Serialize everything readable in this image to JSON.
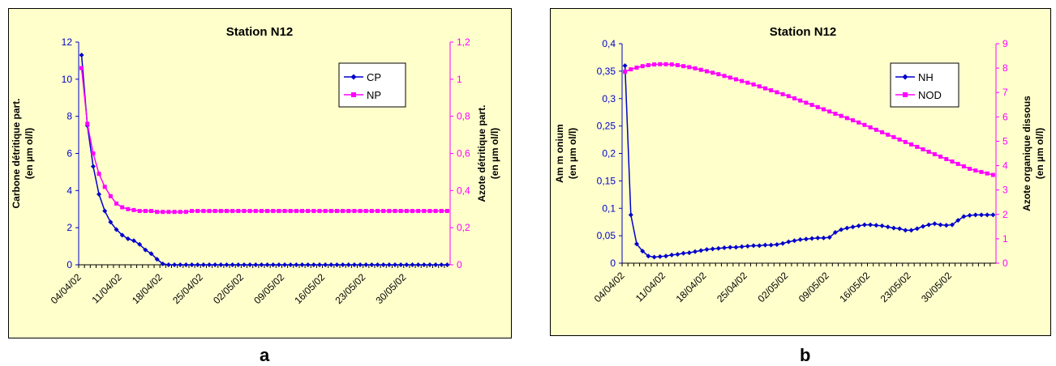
{
  "panel_labels": [
    "a",
    "b"
  ],
  "chart_data": [
    {
      "type": "line",
      "title": "Station N12",
      "ylabel": "Carbone détritique part. (en µm ol/l)",
      "ylabel_lines": [
        "Carbone détritique part.",
        "(en µm ol/l)"
      ],
      "y2label": "Azote détritique part. (en µm ol/l)",
      "y2label_lines": [
        "Azote détritique part.",
        "(en µm ol/l)"
      ],
      "xlabel": "",
      "ylim": [
        0,
        12
      ],
      "yticks": [
        0,
        2,
        4,
        6,
        8,
        10,
        12
      ],
      "ytick_labels": [
        "0",
        "2",
        "4",
        "6",
        "8",
        "10",
        "12"
      ],
      "y2lim": [
        0,
        1.2
      ],
      "y2ticks": [
        0,
        0.2,
        0.4,
        0.6,
        0.8,
        1,
        1.2
      ],
      "y2tick_labels": [
        "0",
        "0,2",
        "0,4",
        "0,6",
        "0,8",
        "1",
        "1,2"
      ],
      "x_tick_labels": [
        "04/04/02",
        "11/04/02",
        "18/04/02",
        "25/04/02",
        "02/05/02",
        "09/05/02",
        "16/05/02",
        "23/05/02",
        "30/05/02"
      ],
      "x_tick_days": [
        0,
        7,
        14,
        21,
        28,
        35,
        42,
        49,
        56
      ],
      "x_days": [
        0,
        1,
        2,
        3,
        4,
        5,
        6,
        7,
        8,
        9,
        10,
        11,
        12,
        13,
        14,
        15,
        16,
        17,
        18,
        19,
        20,
        21,
        22,
        23,
        24,
        25,
        26,
        27,
        28,
        29,
        30,
        31,
        32,
        33,
        34,
        35,
        36,
        37,
        38,
        39,
        40,
        41,
        42,
        43,
        44,
        45,
        46,
        47,
        48,
        49,
        50,
        51,
        52,
        53,
        54,
        55,
        56,
        57,
        58,
        59,
        60,
        61,
        62,
        63
      ],
      "grid": false,
      "legend_position": "top-right",
      "series": [
        {
          "name": "CP",
          "axis": "left",
          "color": "#0000cc",
          "marker": "diamond",
          "values": [
            11.3,
            7.5,
            5.3,
            3.8,
            2.9,
            2.3,
            1.9,
            1.6,
            1.4,
            1.3,
            1.1,
            0.8,
            0.6,
            0.3,
            0.05,
            0,
            0,
            0,
            0,
            0,
            0,
            0,
            0,
            0,
            0,
            0,
            0,
            0,
            0,
            0,
            0,
            0,
            0,
            0,
            0,
            0,
            0,
            0,
            0,
            0,
            0,
            0,
            0,
            0,
            0,
            0,
            0,
            0,
            0,
            0,
            0,
            0,
            0,
            0,
            0,
            0,
            0,
            0,
            0,
            0,
            0,
            0,
            0,
            0
          ]
        },
        {
          "name": "NP",
          "axis": "right",
          "color": "#ff00ff",
          "marker": "square",
          "values": [
            1.06,
            0.76,
            0.6,
            0.49,
            0.42,
            0.37,
            0.33,
            0.31,
            0.3,
            0.295,
            0.29,
            0.29,
            0.29,
            0.285,
            0.285,
            0.285,
            0.285,
            0.285,
            0.285,
            0.29,
            0.29,
            0.29,
            0.29,
            0.29,
            0.29,
            0.29,
            0.29,
            0.29,
            0.29,
            0.29,
            0.29,
            0.29,
            0.29,
            0.29,
            0.29,
            0.29,
            0.29,
            0.29,
            0.29,
            0.29,
            0.29,
            0.29,
            0.29,
            0.29,
            0.29,
            0.29,
            0.29,
            0.29,
            0.29,
            0.29,
            0.29,
            0.29,
            0.29,
            0.29,
            0.29,
            0.29,
            0.29,
            0.29,
            0.29,
            0.29,
            0.29,
            0.29,
            0.29,
            0.29
          ]
        }
      ]
    },
    {
      "type": "line",
      "title": "Station N12",
      "ylabel": "Ammonium (en µm ol/l)",
      "ylabel_lines": [
        "Am m onium",
        "(en µm ol/l)"
      ],
      "y2label": "Azote organique dissous (en µm ol/l)",
      "y2label_lines": [
        "Azote organique dissous",
        "(en µm ol/l)"
      ],
      "xlabel": "",
      "ylim": [
        0,
        0.4
      ],
      "yticks": [
        0,
        0.05,
        0.1,
        0.15,
        0.2,
        0.25,
        0.3,
        0.35,
        0.4
      ],
      "ytick_labels": [
        "0",
        "0,05",
        "0,1",
        "0,15",
        "0,2",
        "0,25",
        "0,3",
        "0,35",
        "0,4"
      ],
      "y2lim": [
        0,
        9
      ],
      "y2ticks": [
        0,
        1,
        2,
        3,
        4,
        5,
        6,
        7,
        8,
        9
      ],
      "y2tick_labels": [
        "0",
        "1",
        "2",
        "3",
        "4",
        "5",
        "6",
        "7",
        "8",
        "9"
      ],
      "x_tick_labels": [
        "04/04/02",
        "11/04/02",
        "18/04/02",
        "25/04/02",
        "02/05/02",
        "09/05/02",
        "16/05/02",
        "23/05/02",
        "30/05/02"
      ],
      "x_tick_days": [
        0,
        7,
        14,
        21,
        28,
        35,
        42,
        49,
        56
      ],
      "x_days": [
        0,
        1,
        2,
        3,
        4,
        5,
        6,
        7,
        8,
        9,
        10,
        11,
        12,
        13,
        14,
        15,
        16,
        17,
        18,
        19,
        20,
        21,
        22,
        23,
        24,
        25,
        26,
        27,
        28,
        29,
        30,
        31,
        32,
        33,
        34,
        35,
        36,
        37,
        38,
        39,
        40,
        41,
        42,
        43,
        44,
        45,
        46,
        47,
        48,
        49,
        50,
        51,
        52,
        53,
        54,
        55,
        56,
        57,
        58,
        59,
        60,
        61,
        62,
        63
      ],
      "grid": false,
      "legend_position": "top-right",
      "series": [
        {
          "name": "NH",
          "axis": "left",
          "color": "#0000cc",
          "marker": "diamond",
          "values": [
            0.36,
            0.088,
            0.035,
            0.022,
            0.013,
            0.011,
            0.012,
            0.013,
            0.015,
            0.016,
            0.018,
            0.019,
            0.021,
            0.023,
            0.025,
            0.026,
            0.027,
            0.028,
            0.029,
            0.029,
            0.03,
            0.031,
            0.032,
            0.032,
            0.033,
            0.033,
            0.034,
            0.036,
            0.039,
            0.041,
            0.043,
            0.044,
            0.045,
            0.046,
            0.046,
            0.047,
            0.056,
            0.061,
            0.064,
            0.066,
            0.068,
            0.07,
            0.07,
            0.069,
            0.068,
            0.066,
            0.064,
            0.063,
            0.06,
            0.06,
            0.063,
            0.067,
            0.07,
            0.072,
            0.07,
            0.069,
            0.07,
            0.078,
            0.085,
            0.087,
            0.088,
            0.088,
            0.088,
            0.088
          ]
        },
        {
          "name": "NOD",
          "axis": "right",
          "color": "#ff00ff",
          "marker": "square",
          "values": [
            7.85,
            7.95,
            8.02,
            8.08,
            8.12,
            8.15,
            8.16,
            8.16,
            8.15,
            8.12,
            8.08,
            8.04,
            7.99,
            7.93,
            7.87,
            7.81,
            7.75,
            7.68,
            7.61,
            7.54,
            7.47,
            7.4,
            7.33,
            7.25,
            7.17,
            7.09,
            7.01,
            6.93,
            6.85,
            6.76,
            6.67,
            6.58,
            6.49,
            6.4,
            6.31,
            6.22,
            6.13,
            6.04,
            5.95,
            5.86,
            5.77,
            5.67,
            5.57,
            5.47,
            5.37,
            5.27,
            5.17,
            5.07,
            4.97,
            4.87,
            4.77,
            4.67,
            4.57,
            4.47,
            4.37,
            4.27,
            4.17,
            4.07,
            3.97,
            3.87,
            3.8,
            3.74,
            3.68,
            3.62
          ]
        }
      ]
    }
  ]
}
